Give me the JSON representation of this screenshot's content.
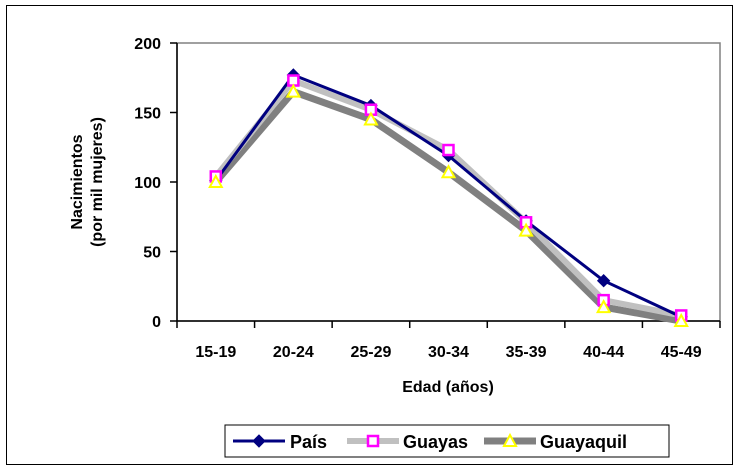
{
  "chart_data": {
    "type": "line",
    "title": "",
    "xlabel": "Edad (años)",
    "ylabel": [
      "Nacimientos",
      "(por mil mujeres)"
    ],
    "categories": [
      "15-19",
      "20-24",
      "25-29",
      "30-34",
      "35-39",
      "40-44",
      "45-49"
    ],
    "ylim": [
      0,
      200
    ],
    "yticks": [
      0,
      50,
      100,
      150,
      200
    ],
    "grid": false,
    "legend_position": "bottom",
    "series": [
      {
        "name": "País",
        "values": [
          101,
          177,
          155,
          119,
          72,
          29,
          3
        ],
        "color": "#000080",
        "marker": "diamond"
      },
      {
        "name": "Guayas",
        "values": [
          104,
          173,
          152,
          123,
          71,
          15,
          4
        ],
        "color": "#c0c0c0",
        "marker_color": "#ff00ff",
        "marker": "square"
      },
      {
        "name": "Guayaquil",
        "values": [
          100,
          165,
          145,
          107,
          65,
          10,
          0
        ],
        "color": "#808080",
        "marker_color": "#ffff00",
        "marker": "triangle"
      }
    ]
  }
}
